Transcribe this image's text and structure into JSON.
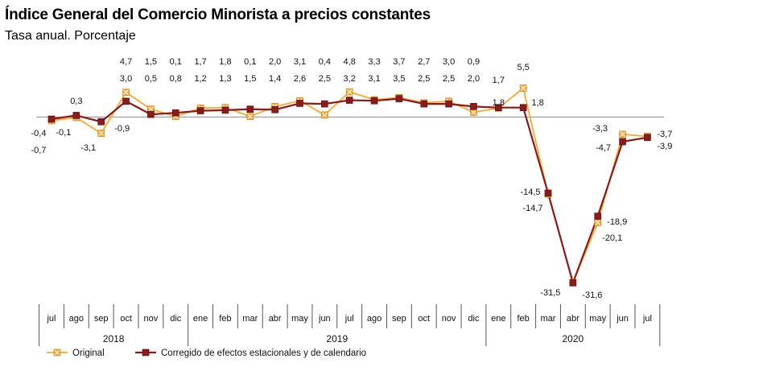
{
  "chart_data": {
    "type": "line",
    "title": "Índice General del Comercio Minorista a precios constantes",
    "subtitle": "Tasa anual. Porcentaje",
    "categories": [
      "jul",
      "ago",
      "sep",
      "oct",
      "nov",
      "dic",
      "ene",
      "feb",
      "mar",
      "abr",
      "may",
      "jun",
      "jul",
      "ago",
      "sep",
      "oct",
      "nov",
      "dic",
      "ene",
      "feb",
      "mar",
      "abr",
      "may",
      "jun",
      "jul"
    ],
    "years": [
      {
        "label": "2018",
        "start": 0,
        "end": 5
      },
      {
        "label": "2019",
        "start": 6,
        "end": 17
      },
      {
        "label": "2020",
        "start": 18,
        "end": 24
      }
    ],
    "ylim": [
      -33,
      6
    ],
    "series": [
      {
        "name": "Original",
        "color": "#F7A934",
        "marker": "square-x",
        "values": [
          -0.7,
          -0.1,
          -3.1,
          4.7,
          1.5,
          0.1,
          1.7,
          1.8,
          0.1,
          2.0,
          3.1,
          0.4,
          4.8,
          3.3,
          3.7,
          2.7,
          3.0,
          0.9,
          1.7,
          5.5,
          -14.7,
          -31.5,
          -20.1,
          -3.3,
          -3.7
        ],
        "labels": [
          "-0,7",
          "-0,1",
          "-3,1",
          "4,7",
          "1,5",
          "0,1",
          "1,7",
          "1,8",
          "0,1",
          "2,0",
          "3,1",
          "0,4",
          "4,8",
          "3,3",
          "3,7",
          "2,7",
          "3,0",
          "0,9",
          "1,7",
          "5,5",
          "-14,7",
          "-31,5",
          "-20,1",
          "-3,3",
          "-3,7"
        ]
      },
      {
        "name": "Corregido de efectos estacionales y de calendario",
        "color": "#8B1A1A",
        "marker": "square",
        "values": [
          -0.4,
          0.3,
          -0.9,
          3.0,
          0.5,
          0.8,
          1.2,
          1.3,
          1.5,
          1.4,
          2.6,
          2.5,
          3.2,
          3.1,
          3.5,
          2.5,
          2.5,
          2.0,
          1.8,
          1.8,
          -14.5,
          -31.6,
          -18.9,
          -4.7,
          -3.9
        ],
        "labels": [
          "-0,4",
          "0,3",
          "-0,9",
          "3,0",
          "0,5",
          "0,8",
          "1,2",
          "1,3",
          "1,5",
          "1,4",
          "2,6",
          "2,5",
          "3,2",
          "3,1",
          "3,5",
          "2,5",
          "2,5",
          "2,0",
          "1,8",
          "1,8",
          "-14,5",
          "-31,6",
          "-18,9",
          "-4,7",
          "-3,9"
        ]
      }
    ]
  }
}
